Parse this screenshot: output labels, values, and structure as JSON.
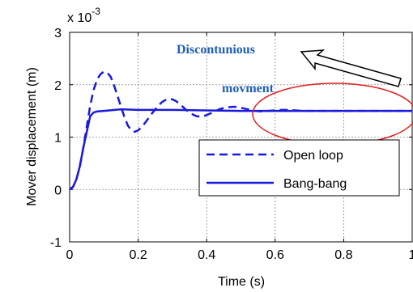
{
  "chart_data": {
    "type": "line",
    "title": "",
    "xlabel": "Time (s)",
    "ylabel": "Mover displacement (m)",
    "xlim": [
      0,
      1
    ],
    "ylim": [
      -0.001,
      0.003
    ],
    "y_scale_label": "x 10",
    "y_scale_exponent": "-3",
    "xticks": [
      "0",
      "0.2",
      "0.4",
      "0.6",
      "0.8",
      "1"
    ],
    "yticks": [
      "-1",
      "0",
      "1",
      "2",
      "3"
    ],
    "grid": true,
    "legend_position": "right",
    "series": [
      {
        "name": "Open loop",
        "style": "dashed",
        "color": "#1a1adb",
        "x": [
          0,
          0.01,
          0.02,
          0.03,
          0.04,
          0.05,
          0.06,
          0.07,
          0.08,
          0.09,
          0.1,
          0.11,
          0.12,
          0.13,
          0.14,
          0.15,
          0.16,
          0.17,
          0.18,
          0.19,
          0.2,
          0.21,
          0.22,
          0.23,
          0.24,
          0.25,
          0.26,
          0.27,
          0.28,
          0.29,
          0.3,
          0.31,
          0.32,
          0.33,
          0.34,
          0.35,
          0.36,
          0.37,
          0.38,
          0.39,
          0.4,
          0.42,
          0.44,
          0.46,
          0.48,
          0.5,
          0.52,
          0.54,
          0.56,
          0.58,
          0.6,
          0.62,
          0.64,
          0.66,
          0.68,
          0.7,
          0.72,
          0.75,
          0.8,
          0.85,
          0.9,
          0.95,
          1.0
        ],
        "y": [
          0.0,
          5e-05,
          0.0002,
          0.00045,
          0.0008,
          0.0012,
          0.0016,
          0.0019,
          0.0021,
          0.0022,
          0.00225,
          0.00223,
          0.00215,
          0.00198,
          0.00178,
          0.00158,
          0.00138,
          0.00122,
          0.00113,
          0.0011,
          0.00113,
          0.00119,
          0.00127,
          0.00136,
          0.00145,
          0.00153,
          0.00161,
          0.00167,
          0.00171,
          0.00173,
          0.00172,
          0.00169,
          0.00164,
          0.00158,
          0.00152,
          0.00147,
          0.00143,
          0.0014,
          0.00139,
          0.0014,
          0.00142,
          0.00148,
          0.00154,
          0.00157,
          0.00158,
          0.00156,
          0.00153,
          0.0015,
          0.00149,
          0.0015,
          0.00151,
          0.00152,
          0.00152,
          0.00151,
          0.0015,
          0.0015,
          0.0015,
          0.0015,
          0.0015,
          0.0015,
          0.0015,
          0.0015,
          0.0015
        ]
      },
      {
        "name": "Bang-bang",
        "style": "solid",
        "color": "#1a1adb",
        "x": [
          0,
          0.01,
          0.02,
          0.03,
          0.04,
          0.05,
          0.06,
          0.07,
          0.08,
          0.1,
          0.15,
          0.2,
          0.3,
          0.4,
          0.5,
          0.6,
          0.7,
          0.8,
          0.9,
          1.0
        ],
        "y": [
          0.0,
          5e-05,
          0.0002,
          0.00045,
          0.0008,
          0.0011,
          0.0014,
          0.00147,
          0.00149,
          0.0015,
          0.00153,
          0.00152,
          0.00152,
          0.00151,
          0.0015,
          0.0015,
          0.0015,
          0.0015,
          0.0015,
          0.0015
        ]
      }
    ],
    "annotations": [
      {
        "text": "Discontunious"
      },
      {
        "text": "movment"
      }
    ]
  }
}
